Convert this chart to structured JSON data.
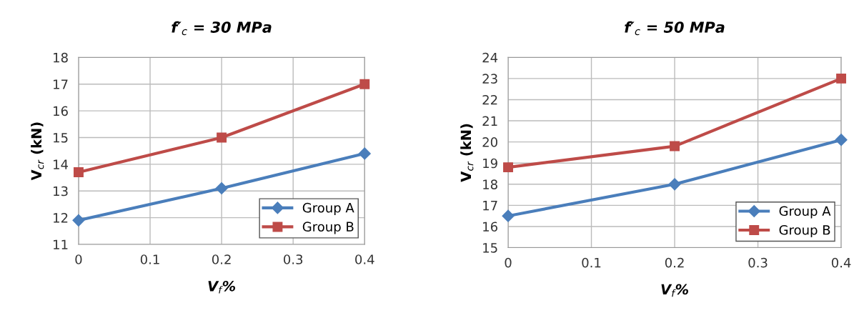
{
  "chart_data": [
    {
      "type": "line",
      "title": "f′$_{c}$ = 30 MPa",
      "xlabel": "V$_{f}$%",
      "ylabel": "V$_{cr}$ (kN)",
      "x": [
        0,
        0.2,
        0.4
      ],
      "series": [
        {
          "name": "Group A",
          "color": "#4a7ebb",
          "marker": "diamond",
          "values": [
            11.9,
            13.1,
            14.4
          ]
        },
        {
          "name": "Group B",
          "color": "#be4b48",
          "marker": "square",
          "values": [
            13.7,
            15.0,
            17.0
          ]
        }
      ],
      "xlim": [
        0,
        0.4
      ],
      "xticks": [
        0,
        0.1,
        0.2,
        0.3,
        0.4
      ],
      "ylim": [
        11,
        18
      ],
      "yticks": [
        11,
        12,
        13,
        14,
        15,
        16,
        17,
        18
      ],
      "grid": true,
      "legend": "bottom right"
    },
    {
      "type": "line",
      "title": "f′$_{c}$ = 50 MPa",
      "xlabel": "V$_{f}$%",
      "ylabel": "V$_{cr}$ (kN)",
      "x": [
        0,
        0.2,
        0.4
      ],
      "series": [
        {
          "name": "Group A",
          "color": "#4a7ebb",
          "marker": "diamond",
          "values": [
            16.5,
            18.0,
            20.1
          ]
        },
        {
          "name": "Group B",
          "color": "#be4b48",
          "marker": "square",
          "values": [
            18.8,
            19.8,
            23.0
          ]
        }
      ],
      "xlim": [
        0,
        0.4
      ],
      "xticks": [
        0,
        0.1,
        0.2,
        0.3,
        0.4
      ],
      "ylim": [
        15,
        24
      ],
      "yticks": [
        15,
        16,
        17,
        18,
        19,
        20,
        21,
        22,
        23,
        24
      ],
      "grid": true,
      "legend": "bottom right"
    }
  ]
}
